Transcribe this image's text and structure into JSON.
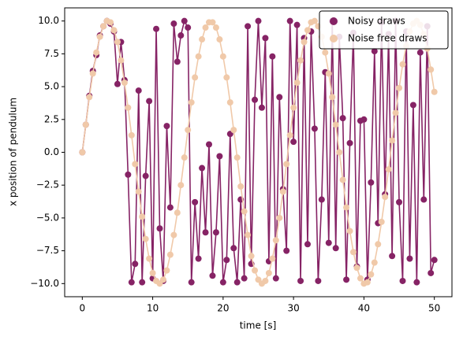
{
  "chart_data": {
    "type": "line_scatter",
    "xlabel": "time [s]",
    "ylabel": "x position of pendulum",
    "x": [
      0,
      0.5,
      1,
      1.5,
      2,
      2.5,
      3,
      3.5,
      4,
      4.5,
      5,
      5.5,
      6,
      6.5,
      7,
      7.5,
      8,
      8.5,
      9,
      9.5,
      10,
      10.5,
      11,
      11.5,
      12,
      12.5,
      13,
      13.5,
      14,
      14.5,
      15,
      15.5,
      16,
      16.5,
      17,
      17.5,
      18,
      18.5,
      19,
      19.5,
      20,
      20.5,
      21,
      21.5,
      22,
      22.5,
      23,
      23.5,
      24,
      24.5,
      25,
      25.5,
      26,
      26.5,
      27,
      27.5,
      28,
      28.5,
      29,
      29.5,
      30,
      30.5,
      31,
      31.5,
      32,
      32.5,
      33,
      33.5,
      34,
      34.5,
      35,
      35.5,
      36,
      36.5,
      37,
      37.5,
      38,
      38.5,
      39,
      39.5,
      40,
      40.5,
      41,
      41.5,
      42,
      42.5,
      43,
      43.5,
      44,
      44.5,
      45,
      45.5,
      46,
      46.5,
      47,
      47.5,
      48,
      48.5,
      49,
      49.5,
      50
    ],
    "series": [
      {
        "name": "Noisy draws",
        "color": "#862365",
        "values": [
          0,
          2.1,
          4.3,
          6.2,
          7.4,
          8.9,
          9.6,
          10,
          9.8,
          9.2,
          5.2,
          8.4,
          5.5,
          -1.7,
          -9.9,
          -8.5,
          4.7,
          -9.9,
          -1.8,
          3.9,
          -9.6,
          9.4,
          -5.8,
          -9.8,
          2.0,
          -4.2,
          9.8,
          6.9,
          8.9,
          10,
          9.5,
          -9.9,
          -3.8,
          -8.1,
          -1.2,
          -6.1,
          0.6,
          -9.4,
          -6.1,
          -0.3,
          -9.9,
          -8.2,
          1.4,
          -7.3,
          -9.9,
          -3.6,
          -9.6,
          9.6,
          -8.5,
          4.0,
          10,
          3.4,
          8.7,
          -8.3,
          7.3,
          -9.6,
          4.2,
          -2.8,
          -7.5,
          10,
          0.8,
          9.7,
          -9.8,
          8.7,
          -7.0,
          9.2,
          1.8,
          -9.8,
          -3.6,
          6.1,
          -6.9,
          10,
          -7.3,
          8.8,
          2.6,
          -9.7,
          0.7,
          9.1,
          -8.7,
          2.4,
          2.5,
          -9.7,
          -2.3,
          7.7,
          -5.4,
          9.9,
          -3.2,
          9.0,
          -7.9,
          10,
          -3.8,
          -9.8,
          9.2,
          -8.1,
          3.6,
          -9.9,
          7.6,
          -3.6,
          9.6,
          -9.2,
          -8.2
        ]
      },
      {
        "name": "Noise free draws",
        "color": "#f0c9a9",
        "values": [
          0,
          2.1,
          4.2,
          6.0,
          7.6,
          8.8,
          9.6,
          10.0,
          9.9,
          9.3,
          8.4,
          7.0,
          5.3,
          3.4,
          1.3,
          -0.9,
          -3.0,
          -4.9,
          -6.6,
          -8.1,
          -9.2,
          -9.8,
          -10.0,
          -9.7,
          -9.0,
          -7.8,
          -6.3,
          -4.6,
          -2.5,
          -0.4,
          1.7,
          3.8,
          5.7,
          7.3,
          8.6,
          9.5,
          9.9,
          9.9,
          9.5,
          8.6,
          7.3,
          5.7,
          3.8,
          1.7,
          -0.4,
          -2.6,
          -4.5,
          -6.3,
          -7.9,
          -9.0,
          -9.7,
          -10.0,
          -9.8,
          -9.2,
          -8.1,
          -6.7,
          -5.0,
          -3.0,
          -0.9,
          1.3,
          3.4,
          5.3,
          7.0,
          8.4,
          9.3,
          9.9,
          10.0,
          9.6,
          8.8,
          7.6,
          6.0,
          4.2,
          2.1,
          0.0,
          -2.1,
          -4.2,
          -6.0,
          -7.6,
          -8.8,
          -9.6,
          -10.0,
          -9.9,
          -9.3,
          -8.4,
          -7.0,
          -5.3,
          -3.4,
          -1.3,
          0.9,
          3.0,
          4.9,
          6.7,
          8.1,
          9.2,
          9.8,
          10.0,
          9.7,
          9.0,
          7.9,
          6.3,
          4.6
        ]
      }
    ],
    "xlim": [
      -2.5,
      52.5
    ],
    "xticks": [
      0,
      10,
      20,
      30,
      40,
      50
    ],
    "ylim": [
      -11,
      11
    ],
    "yticks": [
      {
        "value": -10,
        "label": "−10.0"
      },
      {
        "value": -7.5,
        "label": "−7.5"
      },
      {
        "value": -5,
        "label": "−5.0"
      },
      {
        "value": -2.5,
        "label": "−2.5"
      },
      {
        "value": 0,
        "label": "0.0"
      },
      {
        "value": 2.5,
        "label": "2.5"
      },
      {
        "value": 5,
        "label": "5.0"
      },
      {
        "value": 7.5,
        "label": "7.5"
      },
      {
        "value": 10,
        "label": "10.0"
      }
    ],
    "legend": "upper right"
  }
}
